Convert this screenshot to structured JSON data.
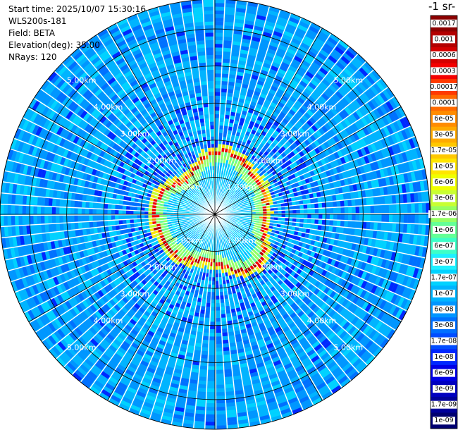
{
  "header": {
    "start_time": "Start time: 2025/10/07 15:30:16",
    "instrument": "WLS200s-181",
    "field": "Field: BETA",
    "elevation": "Elevation(deg): 35.00",
    "nrays": "NRays: 120"
  },
  "colorbar": {
    "unit_label": "-1 sr-",
    "labels": [
      "0.0017",
      "0.001",
      "0.0006",
      "0.0003",
      "0.00017",
      "0.0001",
      "6e-05",
      "3e-05",
      "1.7e-05",
      "1e-05",
      "6e-06",
      "3e-06",
      "1.7e-06",
      "1e-06",
      "6e-07",
      "3e-07",
      "1.7e-07",
      "1e-07",
      "6e-08",
      "3e-08",
      "1.7e-08",
      "1e-08",
      "6e-09",
      "3e-09",
      "1.7e-09",
      "1e-09"
    ],
    "colors": [
      "#8b0000",
      "#b30000",
      "#d40000",
      "#f40000",
      "#ff3a00",
      "#ff6a00",
      "#ff8c00",
      "#ffaa00",
      "#ffc800",
      "#ffe600",
      "#f0ff00",
      "#c8ff32",
      "#96ff64",
      "#64ff96",
      "#3cffc8",
      "#1ef0ff",
      "#00d2ff",
      "#00b4ff",
      "#0096ff",
      "#0070ff",
      "#004cff",
      "#0028ff",
      "#0000e6",
      "#0000c0",
      "#00009a",
      "#000070"
    ]
  },
  "chart_data": {
    "type": "ppi_polar",
    "field": "BETA",
    "nrays": 120,
    "elevation_deg": 35.0,
    "range_rings_km": [
      1,
      2,
      3,
      4,
      5
    ],
    "ring_labels": [
      "1.00km",
      "2.00km",
      "3.00km",
      "4.00km",
      "5.00km"
    ],
    "max_range_km": 5.8,
    "spokes_deg": [
      0,
      30,
      60,
      90,
      120,
      150,
      180,
      210,
      240,
      270,
      300,
      330
    ],
    "color_scale": "log",
    "value_range": [
      1e-09,
      0.0017
    ]
  }
}
